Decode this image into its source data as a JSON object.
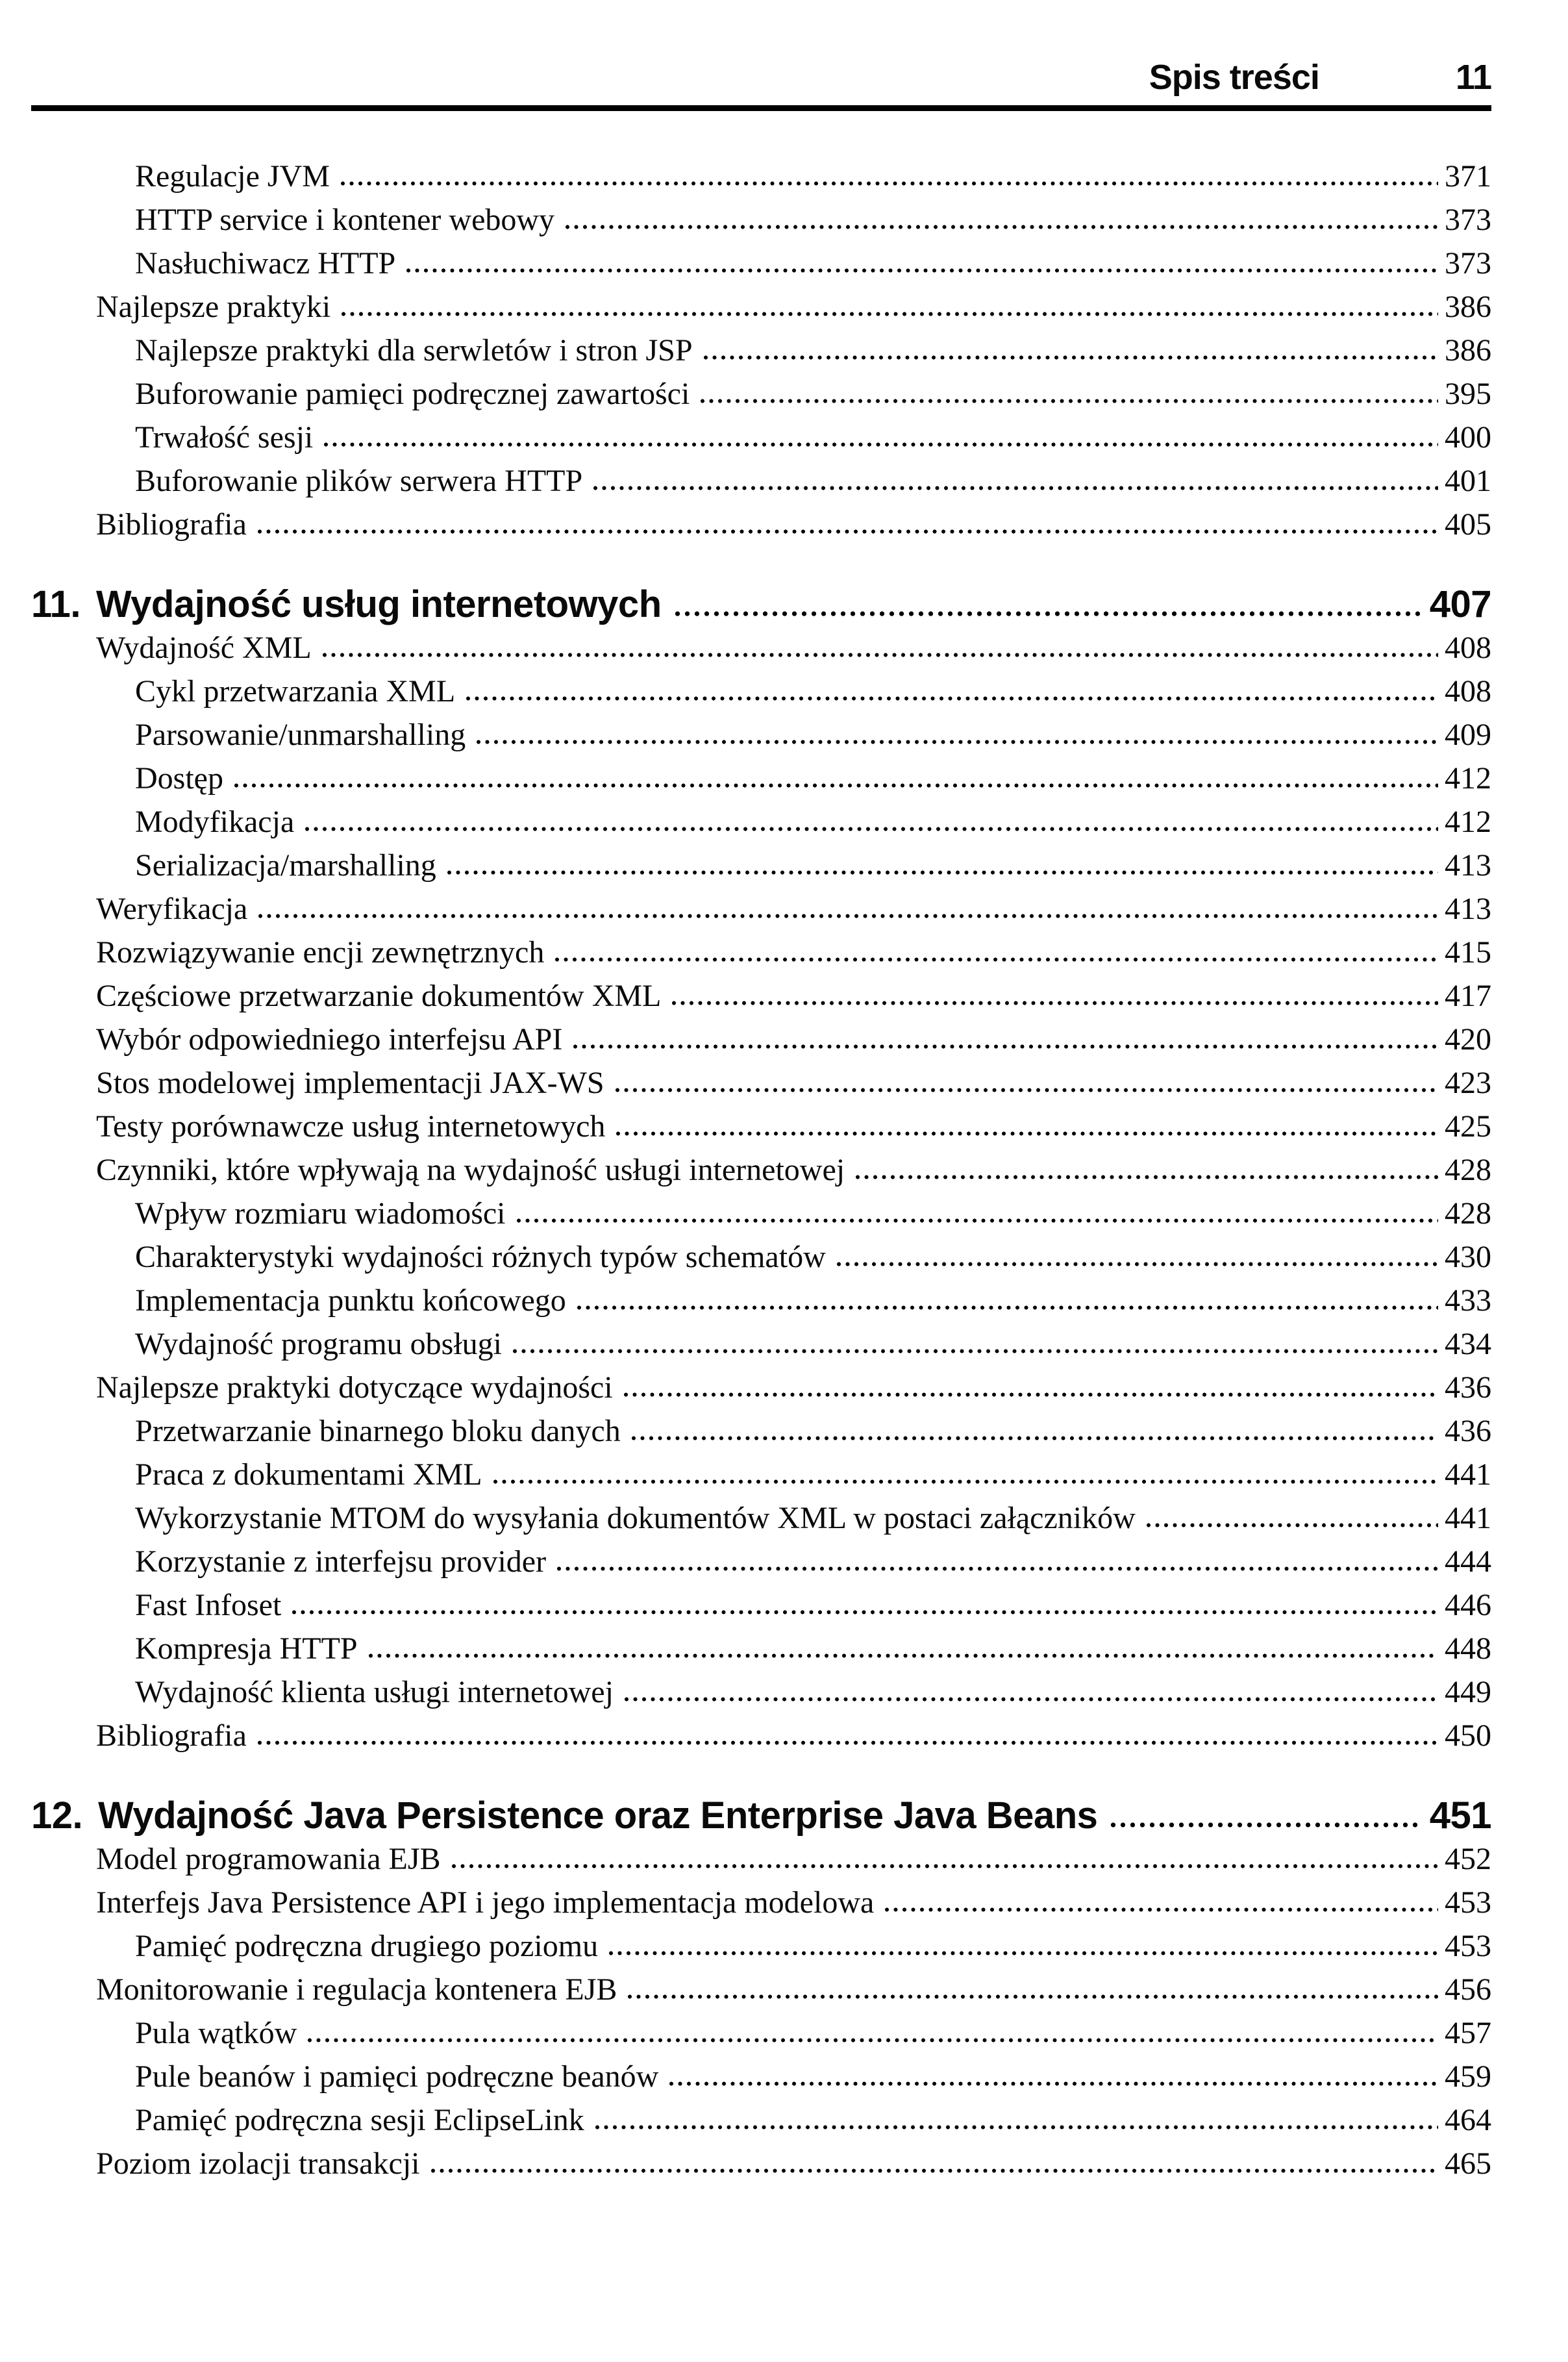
{
  "header": {
    "title": "Spis treści",
    "page_number": "11"
  },
  "colors": {
    "background": "#ffffff",
    "text": "#0a0a0a",
    "rule": "#000000"
  },
  "toc": {
    "entries": [
      {
        "level": 2,
        "label": "Regulacje JVM",
        "page": "371"
      },
      {
        "level": 2,
        "label": "HTTP service i kontener webowy",
        "page": "373"
      },
      {
        "level": 2,
        "label": "Nasłuchiwacz HTTP",
        "page": "373"
      },
      {
        "level": 1,
        "label": "Najlepsze praktyki",
        "page": "386"
      },
      {
        "level": 2,
        "label": "Najlepsze praktyki dla serwletów i stron JSP",
        "page": "386"
      },
      {
        "level": 2,
        "label": "Buforowanie pamięci podręcznej zawartości",
        "page": "395"
      },
      {
        "level": 2,
        "label": "Trwałość sesji",
        "page": "400"
      },
      {
        "level": 2,
        "label": "Buforowanie plików serwera HTTP",
        "page": "401"
      },
      {
        "level": 1,
        "label": "Bibliografia",
        "page": "405"
      },
      {
        "level": 0,
        "number": "11.",
        "label": "Wydajność usług internetowych",
        "page": "407"
      },
      {
        "level": 1,
        "label": "Wydajność XML",
        "page": "408"
      },
      {
        "level": 2,
        "label": "Cykl przetwarzania XML",
        "page": "408"
      },
      {
        "level": 2,
        "label": "Parsowanie/unmarshalling",
        "page": "409"
      },
      {
        "level": 2,
        "label": "Dostęp",
        "page": "412"
      },
      {
        "level": 2,
        "label": "Modyfikacja",
        "page": "412"
      },
      {
        "level": 2,
        "label": "Serializacja/marshalling",
        "page": "413"
      },
      {
        "level": 1,
        "label": "Weryfikacja",
        "page": "413"
      },
      {
        "level": 1,
        "label": "Rozwiązywanie encji zewnętrznych",
        "page": "415"
      },
      {
        "level": 1,
        "label": "Częściowe przetwarzanie dokumentów XML",
        "page": "417"
      },
      {
        "level": 1,
        "label": "Wybór odpowiedniego interfejsu API",
        "page": "420"
      },
      {
        "level": 1,
        "label": "Stos modelowej implementacji JAX-WS",
        "page": "423"
      },
      {
        "level": 1,
        "label": "Testy porównawcze usług internetowych",
        "page": "425"
      },
      {
        "level": 1,
        "label": "Czynniki, które wpływają na wydajność usługi internetowej",
        "page": "428"
      },
      {
        "level": 2,
        "label": "Wpływ rozmiaru wiadomości",
        "page": "428"
      },
      {
        "level": 2,
        "label": "Charakterystyki wydajności różnych typów schematów",
        "page": "430"
      },
      {
        "level": 2,
        "label": "Implementacja punktu końcowego",
        "page": "433"
      },
      {
        "level": 2,
        "label": "Wydajność programu obsługi",
        "page": "434"
      },
      {
        "level": 1,
        "label": "Najlepsze praktyki dotyczące wydajności",
        "page": "436"
      },
      {
        "level": 2,
        "label": "Przetwarzanie binarnego bloku danych",
        "page": "436"
      },
      {
        "level": 2,
        "label": "Praca z dokumentami XML",
        "page": "441"
      },
      {
        "level": 2,
        "label": "Wykorzystanie MTOM do wysyłania dokumentów XML w postaci załączników",
        "page": "441"
      },
      {
        "level": 2,
        "label": "Korzystanie z interfejsu provider",
        "page": "444"
      },
      {
        "level": 2,
        "label": "Fast Infoset",
        "page": "446"
      },
      {
        "level": 2,
        "label": "Kompresja HTTP",
        "page": "448"
      },
      {
        "level": 2,
        "label": "Wydajność klienta usługi internetowej",
        "page": "449"
      },
      {
        "level": 1,
        "label": "Bibliografia",
        "page": "450"
      },
      {
        "level": 0,
        "number": "12.",
        "label": "Wydajność Java Persistence oraz Enterprise Java Beans",
        "page": "451"
      },
      {
        "level": 1,
        "label": "Model programowania EJB",
        "page": "452"
      },
      {
        "level": 1,
        "label": "Interfejs Java Persistence API i jego implementacja modelowa",
        "page": "453"
      },
      {
        "level": 2,
        "label": "Pamięć podręczna drugiego poziomu",
        "page": "453"
      },
      {
        "level": 1,
        "label": "Monitorowanie i regulacja kontenera EJB",
        "page": "456"
      },
      {
        "level": 2,
        "label": "Pula wątków",
        "page": "457"
      },
      {
        "level": 2,
        "label": "Pule beanów i pamięci podręczne beanów",
        "page": "459"
      },
      {
        "level": 2,
        "label": "Pamięć podręczna sesji EclipseLink",
        "page": "464"
      },
      {
        "level": 1,
        "label": "Poziom izolacji transakcji",
        "page": "465"
      }
    ]
  }
}
